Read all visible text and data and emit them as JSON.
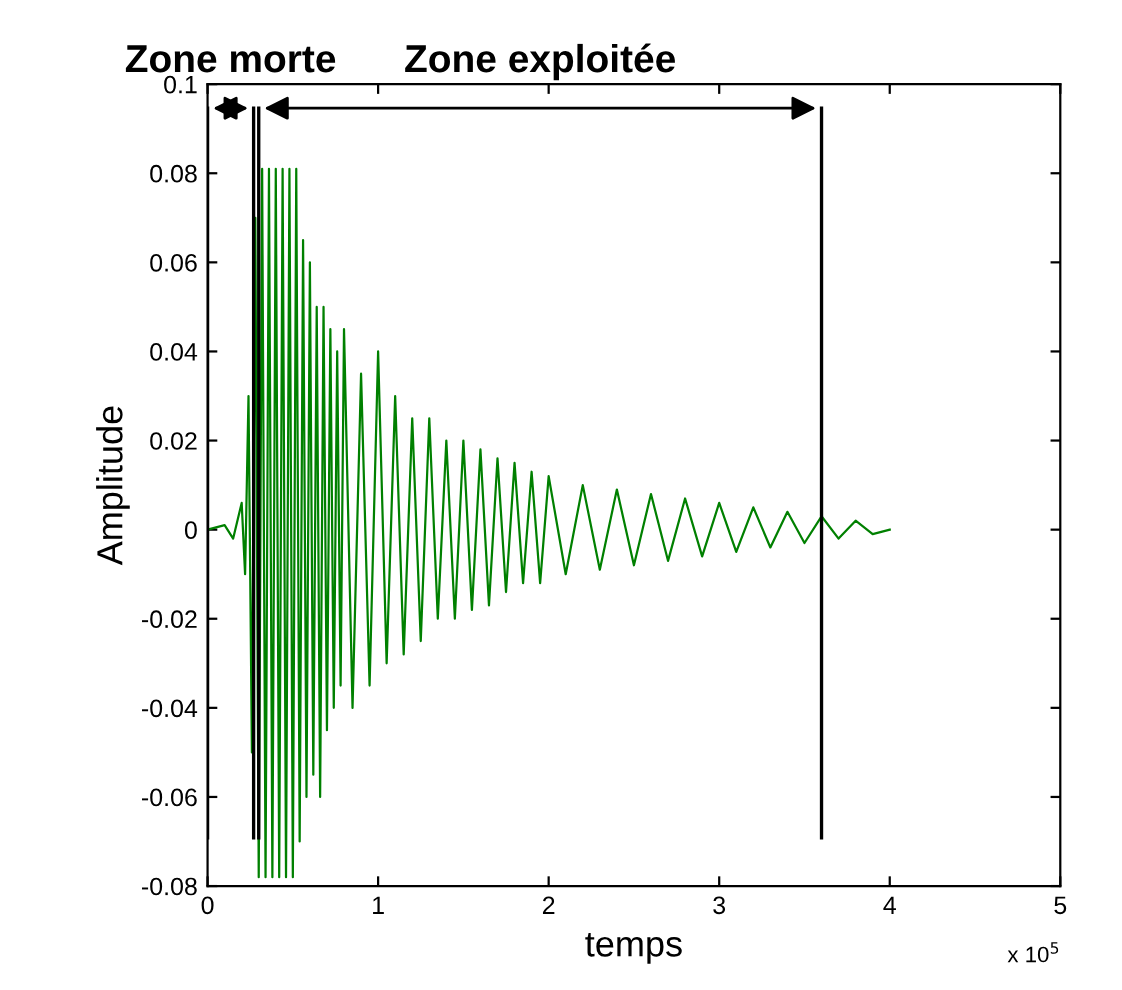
{
  "chart_data": {
    "type": "line",
    "xlabel": "temps",
    "ylabel": "Amplitude",
    "xlim": [
      0,
      5
    ],
    "ylim": [
      -0.08,
      0.1
    ],
    "xticks": [
      0,
      1,
      2,
      3,
      4,
      5
    ],
    "yticks": [
      -0.08,
      -0.06,
      -0.04,
      -0.02,
      0,
      0.02,
      0.04,
      0.06,
      0.08,
      0.1
    ],
    "grid": false,
    "marker": "none",
    "line_style": "solid",
    "annotations": [
      "Zone morte",
      "Zone exploitée",
      "x 10$^{5}$"
    ],
    "ref_lines": [
      {
        "axis": "x",
        "value": 0,
        "color": "#000000"
      },
      {
        "axis": "x",
        "value": 0.27,
        "color": "#000000"
      },
      {
        "axis": "x",
        "value": 0.3,
        "color": "#000000"
      },
      {
        "axis": "x",
        "value": 3.6,
        "color": "#000000"
      }
    ],
    "series": [
      {
        "color": "#008000",
        "x": [
          0,
          0.1,
          0.15,
          0.2,
          0.22,
          0.24,
          0.26,
          0.28,
          0.3,
          0.32,
          0.34,
          0.36,
          0.38,
          0.4,
          0.42,
          0.44,
          0.46,
          0.48,
          0.5,
          0.52,
          0.54,
          0.56,
          0.58,
          0.6,
          0.62,
          0.64,
          0.66,
          0.68,
          0.7,
          0.72,
          0.74,
          0.76,
          0.78,
          0.8,
          0.85,
          0.9,
          0.95,
          1.0,
          1.05,
          1.1,
          1.15,
          1.2,
          1.25,
          1.3,
          1.35,
          1.4,
          1.45,
          1.5,
          1.55,
          1.6,
          1.65,
          1.7,
          1.75,
          1.8,
          1.85,
          1.9,
          1.95,
          2.0,
          2.1,
          2.2,
          2.3,
          2.4,
          2.5,
          2.6,
          2.7,
          2.8,
          2.9,
          3.0,
          3.1,
          3.2,
          3.3,
          3.4,
          3.5,
          3.6,
          3.7,
          3.8,
          3.9,
          4.0
        ],
        "values": [
          0,
          0.001,
          -0.002,
          0.006,
          -0.01,
          0.03,
          -0.05,
          0.07,
          -0.078,
          0.081,
          -0.078,
          0.081,
          -0.078,
          0.081,
          -0.078,
          0.081,
          -0.078,
          0.081,
          -0.078,
          0.081,
          -0.07,
          0.065,
          -0.06,
          0.06,
          -0.055,
          0.05,
          -0.06,
          0.05,
          -0.045,
          0.045,
          -0.04,
          0.04,
          -0.035,
          0.045,
          -0.04,
          0.035,
          -0.035,
          0.04,
          -0.03,
          0.03,
          -0.028,
          0.025,
          -0.025,
          0.025,
          -0.02,
          0.02,
          -0.02,
          0.02,
          -0.018,
          0.018,
          -0.017,
          0.016,
          -0.014,
          0.015,
          -0.012,
          0.013,
          -0.012,
          0.012,
          -0.01,
          0.01,
          -0.009,
          0.009,
          -0.008,
          0.008,
          -0.007,
          0.007,
          -0.006,
          0.006,
          -0.005,
          0.005,
          -0.004,
          0.004,
          -0.003,
          0.003,
          -0.002,
          0.002,
          -0.001,
          0
        ]
      }
    ]
  }
}
